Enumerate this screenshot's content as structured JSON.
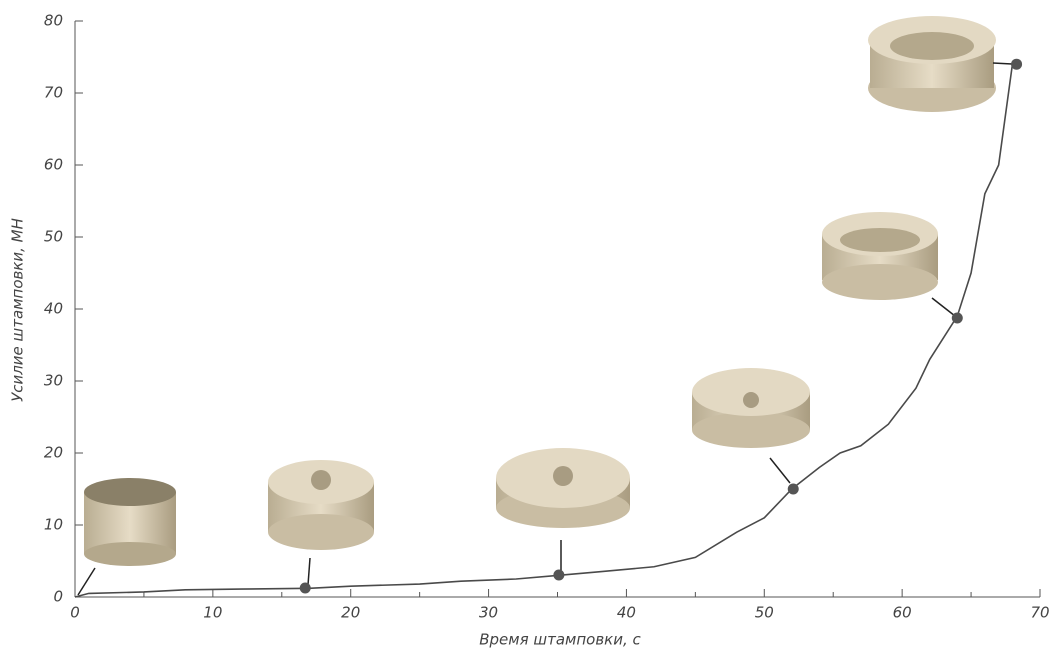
{
  "chart_data": {
    "type": "line",
    "xlabel": "Время штамповки, с",
    "ylabel": "Усилие штамповки, МН",
    "xlim": [
      0,
      70
    ],
    "xticks": [
      0,
      10,
      20,
      30,
      40,
      50,
      60,
      70
    ],
    "xminorticks": [
      5,
      15,
      25,
      35,
      45,
      55,
      65
    ],
    "ylim": [
      0,
      80
    ],
    "yticks": [
      0,
      10,
      20,
      30,
      40,
      50,
      60,
      70,
      80
    ],
    "series": [
      {
        "color": "#4a4a4a",
        "x": [
          0,
          1,
          5,
          8,
          12,
          17,
          20,
          25,
          28,
          32,
          35,
          38,
          42,
          45,
          48,
          50,
          52,
          54,
          55.5,
          57,
          59,
          61,
          62,
          64,
          65,
          66,
          67,
          68
        ],
        "values": [
          0,
          0.5,
          0.7,
          1,
          1.1,
          1.2,
          1.5,
          1.8,
          2.2,
          2.5,
          3,
          3.5,
          4.2,
          5.5,
          9,
          11,
          15,
          18,
          20,
          21,
          24,
          29,
          33,
          39,
          45,
          56,
          60,
          74
        ]
      },
      {
        "color": "#555555",
        "markers": true,
        "x": [
          16.7,
          35.1,
          52.1,
          64.0,
          68.3
        ],
        "values": [
          1.25,
          3.05,
          15,
          38.75,
          74
        ]
      }
    ]
  }
}
